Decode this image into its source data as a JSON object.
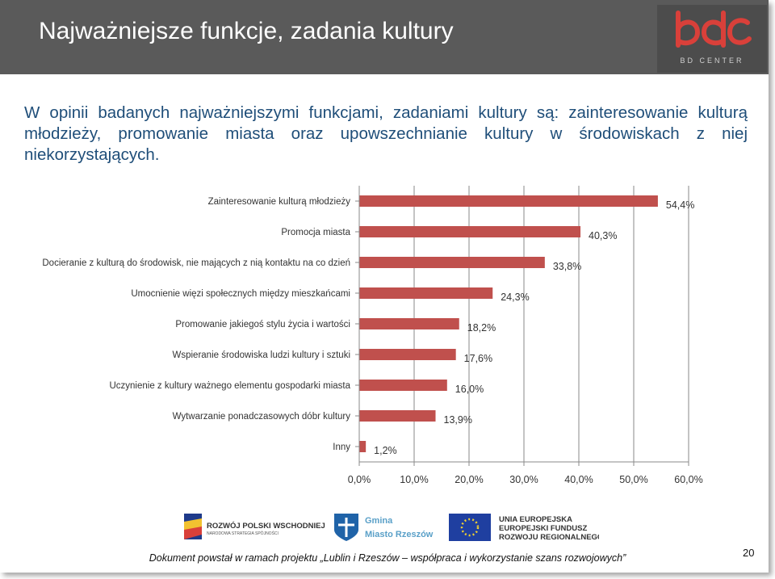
{
  "header": {
    "title": "Najważniejsze funkcje, zadania kultury",
    "logo": {
      "brand": "bdc",
      "subtitle": "BD CENTER"
    }
  },
  "intro_text": "W opinii badanych najważniejszymi funkcjami, zadaniami kultury są: zainteresowanie kulturą młodzieży, promowanie miasta oraz upowszechnianie kultury w środowiskach z niej niekorzystających.",
  "chart_data": {
    "type": "bar",
    "orientation": "horizontal",
    "categories": [
      "Zainteresowanie kulturą młodzieży",
      "Promocja miasta",
      "Docieranie z kulturą do środowisk, nie mających z nią kontaktu na co dzień",
      "Umocnienie więzi społecznych między mieszkańcami",
      "Promowanie jakiegoś stylu życia i wartości",
      "Wspieranie środowiska ludzi kultury i sztuki",
      "Uczynienie z kultury ważnego elementu gospodarki miasta",
      "Wytwarzanie ponadczasowych dóbr kultury",
      "Inny"
    ],
    "values": [
      54.4,
      40.3,
      33.8,
      24.3,
      18.2,
      17.6,
      16.0,
      13.9,
      1.2
    ],
    "value_labels": [
      "54,4%",
      "40,3%",
      "33,8%",
      "24,3%",
      "18,2%",
      "17,6%",
      "16,0%",
      "13,9%",
      "1,2%"
    ],
    "xlim": [
      0,
      60
    ],
    "xticks": [
      0,
      10,
      20,
      30,
      40,
      50,
      60
    ],
    "xtick_labels": [
      "0,0%",
      "10,0%",
      "20,0%",
      "30,0%",
      "40,0%",
      "50,0%",
      "60,0%"
    ],
    "grid": true,
    "bar_color": "#c0504d",
    "grid_color": "#8a8a8a"
  },
  "footer": {
    "logos": {
      "rpw": {
        "line1": "ROZWÓJ POLSKI WSCHODNIEJ",
        "line2": "NARODOWA STRATEGIA SPÓJNOŚCI"
      },
      "gmina": {
        "line1": "Gmina",
        "line2": "Miasto Rzeszów"
      },
      "ue": {
        "line1": "UNIA EUROPEJSKA",
        "line2": "EUROPEJSKI FUNDUSZ",
        "line3": "ROZWOJU REGIONALNEGO"
      }
    },
    "text": "Dokument powstał w ramach projektu „Lublin i Rzeszów – współpraca i wykorzystanie szans rozwojowych”",
    "page_number": "20"
  }
}
